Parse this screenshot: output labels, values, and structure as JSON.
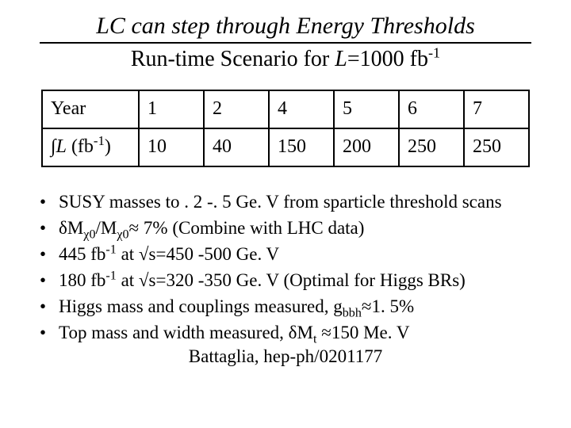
{
  "title": "LC can step through Energy Thresholds",
  "subtitle_prefix": "Run-time Scenario for ",
  "subtitle_L": "L",
  "subtitle_eq": "=1000 fb",
  "subtitle_exp": "-1",
  "table": {
    "row1_label": "Year",
    "row1": [
      "1",
      "2",
      "4",
      "5",
      "6",
      "7"
    ],
    "row2_label_pre": "∫",
    "row2_label_L": "L",
    "row2_label_post": " (fb",
    "row2_label_exp": "-1",
    "row2_label_close": ")",
    "row2": [
      "10",
      "40",
      "150",
      "200",
      "250",
      "250"
    ]
  },
  "bullets": {
    "b1": "SUSY masses to . 2 -. 5 Ge. V from sparticle threshold scans",
    "b2_a": "δM",
    "b2_sub1": "χ0",
    "b2_b": "/M",
    "b2_sub2": "χ0",
    "b2_c": "≈ 7% (Combine with LHC data)",
    "b3_a": "445 fb",
    "b3_exp": "-1",
    "b3_b": " at √s=450 -500 Ge. V",
    "b4_a": "180 fb",
    "b4_exp": "-1",
    "b4_b": " at √s=320 -350 Ge. V (Optimal for Higgs BRs)",
    "b5_a": "Higgs mass and couplings measured, g",
    "b5_sub": "bbh",
    "b5_b": "≈1. 5%",
    "b6_a": "Top mass and width measured, δM",
    "b6_sub": "t",
    "b6_b": " ≈150 Me. V"
  },
  "reference": "Battaglia, hep-ph/0201177",
  "colors": {
    "text": "#000000",
    "background": "#ffffff",
    "border": "#000000"
  },
  "fonts": {
    "family": "Times New Roman",
    "title_size_pt": 30,
    "subtitle_size_pt": 28,
    "table_size_pt": 24,
    "body_size_pt": 23
  }
}
